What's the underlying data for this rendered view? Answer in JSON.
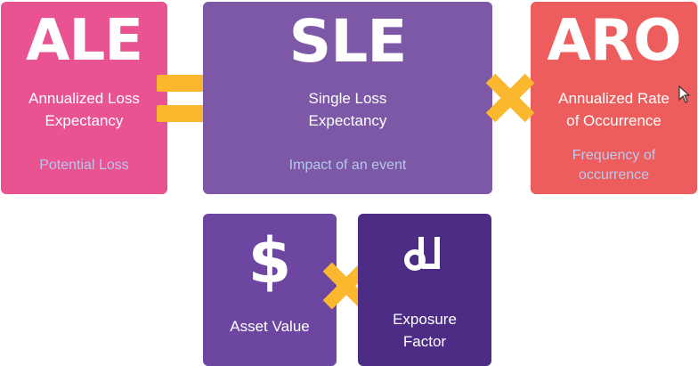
{
  "boxes": {
    "ale": {
      "acronym": "ALE",
      "term": "Annualized Loss\nExpectancy",
      "description": "Potential Loss"
    },
    "sle": {
      "acronym": "SLE",
      "term": "Single Loss\nExpectancy",
      "description": "Impact of an event"
    },
    "aro": {
      "acronym": "ARO",
      "term": "Annualized Rate\nof Occurrence",
      "description": "Frequency of\noccurrence"
    },
    "asset_value": {
      "glyph": "$",
      "label": "Asset Value"
    },
    "exposure_factor": {
      "glyph_icon": "percent-down-icon",
      "label": "Exposure\nFactor"
    }
  },
  "operators": {
    "equals": "equals-icon",
    "multiply": "multiply-icon"
  },
  "colors": {
    "ale": "#e95391",
    "sle": "#7c58a6",
    "aro": "#ee5d5d",
    "asset_value": "#6c46a0",
    "exposure_factor": "#4d2c86",
    "operator": "#fbb72d",
    "description_text": "#b9c8ee"
  }
}
